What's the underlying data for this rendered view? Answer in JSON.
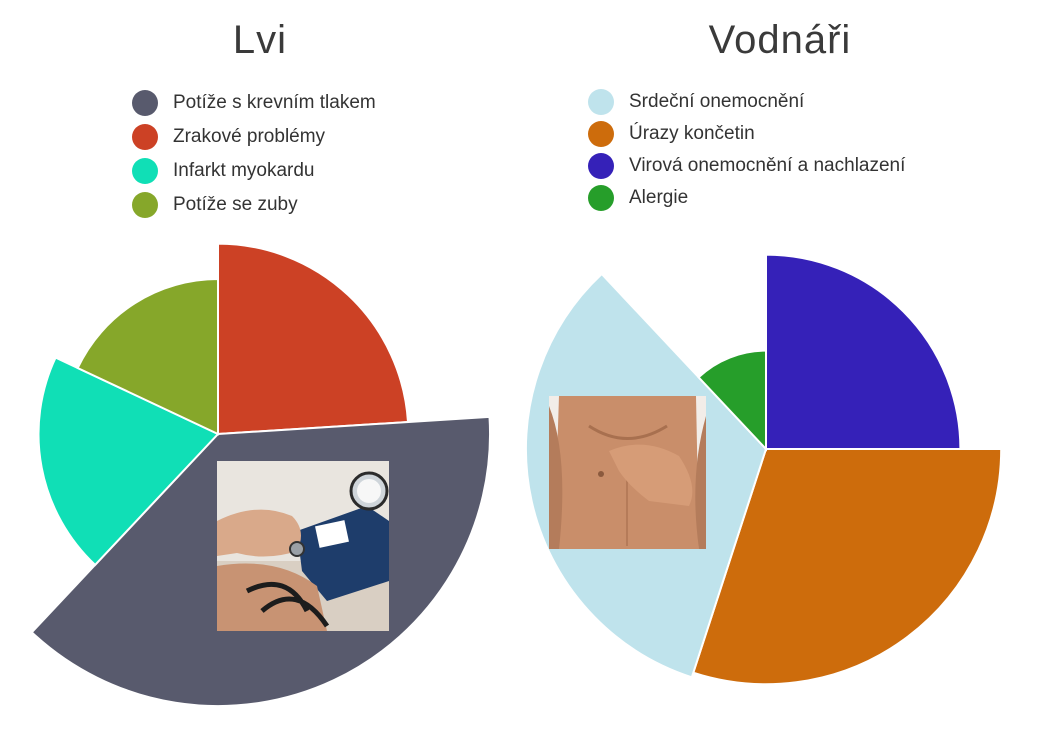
{
  "chart_data": [
    {
      "type": "pie",
      "variant": "polar-area",
      "title": "Lvi",
      "legend_position": "top",
      "legend": [
        "Potíže s krevním tlakem",
        "Zrakové problémy",
        "Infarkt myokardu",
        "Potíže se zuby"
      ],
      "slices": [
        {
          "label": "Zrakové problémy",
          "share": 0.24,
          "relative_radius": 0.7,
          "color": "#cc4125"
        },
        {
          "label": "Potíže s krevním tlakem",
          "share": 0.38,
          "relative_radius": 1.0,
          "color": "#585a6d"
        },
        {
          "label": "Infarkt myokardu",
          "share": 0.2,
          "relative_radius": 0.66,
          "color": "#10dfb6"
        },
        {
          "label": "Potíže se zuby",
          "share": 0.18,
          "relative_radius": 0.57,
          "color": "#86a72a"
        }
      ],
      "image": "blood-pressure-measurement-photo"
    },
    {
      "type": "pie",
      "variant": "polar-area",
      "title": "Vodnáři",
      "legend_position": "top",
      "legend": [
        "Srdeční onemocnění",
        "Úrazy končetin",
        "Virová onemocnění a nachlazení",
        "Alergie"
      ],
      "slices": [
        {
          "label": "Virová onemocnění a nachlazení",
          "share": 0.25,
          "relative_radius": 0.81,
          "color": "#3521b8"
        },
        {
          "label": "Úrazy končetin",
          "share": 0.3,
          "relative_radius": 0.98,
          "color": "#cd6c0c"
        },
        {
          "label": "Srdeční onemocnění",
          "share": 0.33,
          "relative_radius": 1.0,
          "color": "#bfe3ec"
        },
        {
          "label": "Alergie",
          "share": 0.12,
          "relative_radius": 0.41,
          "color": "#269e2a"
        }
      ],
      "image": "bare-chest-hand-on-heart-photo"
    }
  ]
}
